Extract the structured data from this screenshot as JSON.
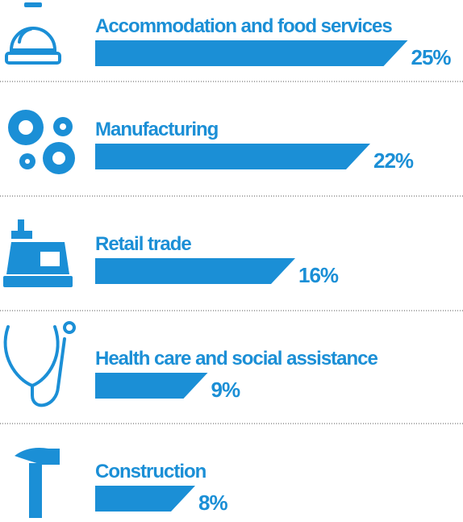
{
  "chart_data": {
    "type": "bar",
    "orientation": "horizontal",
    "color": "#1b8fd6",
    "categories": [
      "Accommodation and food services",
      "Manufacturing",
      "Retail trade",
      "Health care and social assistance",
      "Construction"
    ],
    "values": [
      25,
      22,
      16,
      9,
      8
    ],
    "value_labels": [
      "25%",
      "22%",
      "16%",
      "9%",
      "8%"
    ]
  }
}
